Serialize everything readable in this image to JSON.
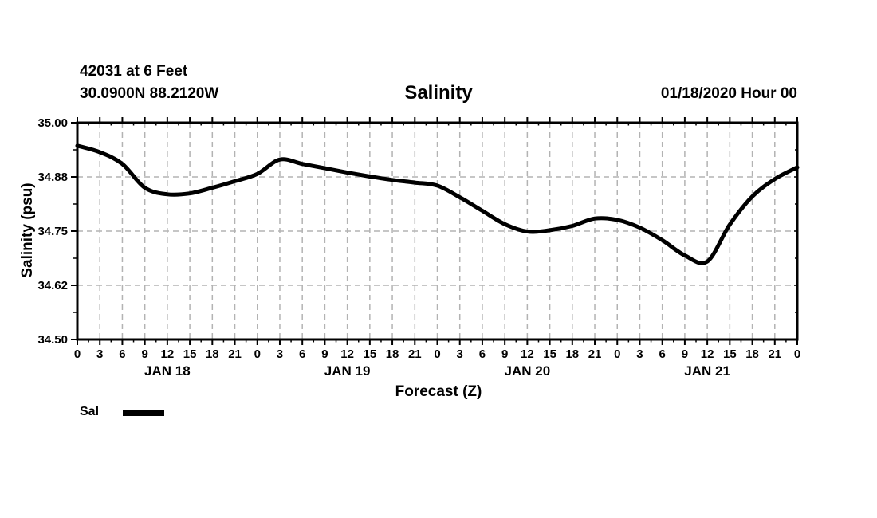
{
  "header": {
    "station_line": "42031 at 6 Feet",
    "location_line": "30.0900N 88.2120W",
    "run_label": "01/18/2020 Hour 00"
  },
  "legend": {
    "items": [
      {
        "label": "Sal",
        "color": "#000000"
      }
    ]
  },
  "colors": {
    "line": "#000000",
    "grid": "#b3b3b3",
    "axis": "#000000",
    "text": "#000000",
    "background": "#ffffff"
  },
  "chart_data": {
    "type": "line",
    "title": "Salinity",
    "xlabel": "Forecast (Z)",
    "ylabel": "Salinity (psu)",
    "ylim": [
      34.5,
      35.0
    ],
    "y_ticks": [
      {
        "value": 34.5,
        "label": "34.50"
      },
      {
        "value": 34.625,
        "label": "34.62"
      },
      {
        "value": 34.75,
        "label": "34.75"
      },
      {
        "value": 34.875,
        "label": "34.88"
      },
      {
        "value": 35.0,
        "label": "35.00"
      }
    ],
    "y_minor_ticks": [
      34.5625,
      34.6875,
      34.8125,
      34.9375
    ],
    "xlim_hours": [
      0,
      96
    ],
    "x_tick_interval_hours": 3,
    "x_tick_labels": [
      "0",
      "3",
      "6",
      "9",
      "12",
      "15",
      "18",
      "21",
      "0",
      "3",
      "6",
      "9",
      "12",
      "15",
      "18",
      "21",
      "0",
      "3",
      "6",
      "9",
      "12",
      "15",
      "18",
      "21",
      "0",
      "3",
      "6",
      "9",
      "12",
      "15",
      "18",
      "21",
      "0"
    ],
    "days": [
      {
        "label": "JAN 18",
        "center_hour": 12
      },
      {
        "label": "JAN 19",
        "center_hour": 36
      },
      {
        "label": "JAN 20",
        "center_hour": 60
      },
      {
        "label": "JAN 21",
        "center_hour": 84
      }
    ],
    "grid": {
      "vertical_every_hours": 3,
      "horizontal_at_major_ticks": true,
      "style": "dashed"
    },
    "legend_position": "bottom-left",
    "series": [
      {
        "name": "Sal",
        "x_hours": [
          0,
          3,
          6,
          9,
          12,
          15,
          18,
          21,
          24,
          27,
          30,
          33,
          36,
          39,
          42,
          45,
          48,
          51,
          54,
          57,
          60,
          63,
          66,
          69,
          72,
          75,
          78,
          81,
          84,
          87,
          90,
          93,
          96
        ],
        "values": [
          34.947,
          34.932,
          34.905,
          34.85,
          34.835,
          34.837,
          34.85,
          34.865,
          34.882,
          34.915,
          34.905,
          34.895,
          34.885,
          34.876,
          34.868,
          34.862,
          34.855,
          34.828,
          34.797,
          34.766,
          34.749,
          34.752,
          34.762,
          34.779,
          34.776,
          34.758,
          34.729,
          34.694,
          34.68,
          34.765,
          34.83,
          34.87,
          34.897
        ]
      }
    ]
  }
}
